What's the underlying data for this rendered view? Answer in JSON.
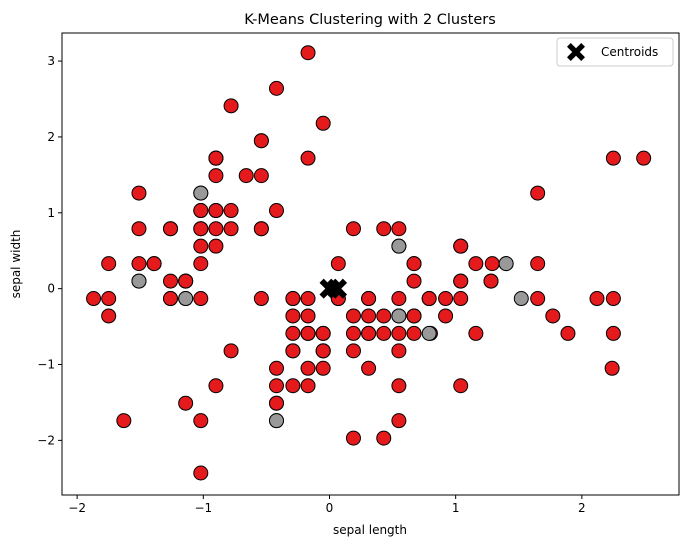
{
  "chart_data": {
    "type": "scatter",
    "title": "K-Means Clustering with 2 Clusters",
    "xlabel": "sepal length",
    "ylabel": "sepal width",
    "xlim": [
      -2.12,
      2.77
    ],
    "ylim": [
      -2.72,
      3.37
    ],
    "xticks": [
      -2,
      -1,
      0,
      1,
      2
    ],
    "yticks": [
      -2,
      -1,
      0,
      1,
      2,
      3
    ],
    "tick_labels_x": [
      "−2",
      "−1",
      "0",
      "1",
      "2"
    ],
    "tick_labels_y": [
      "−2",
      "−1",
      "0",
      "1",
      "2",
      "3"
    ],
    "legend": {
      "entries": [
        "Centroids"
      ],
      "placement": "upper-right"
    },
    "colors": {
      "cluster_red": "#e41a1c",
      "cluster_grey": "#999999",
      "centroid": "#000000",
      "edge": "#000000"
    },
    "series": [
      {
        "cluster": 0,
        "color": "#e41a1c",
        "points": [
          [
            -0.9,
            1.03
          ],
          [
            -1.14,
            -0.13
          ],
          [
            -1.39,
            0.33
          ],
          [
            -1.51,
            0.1
          ],
          [
            -1.02,
            1.26
          ],
          [
            -0.54,
            1.95
          ],
          [
            -1.51,
            0.79
          ],
          [
            -1.02,
            0.79
          ],
          [
            -1.75,
            -0.36
          ],
          [
            -1.14,
            0.1
          ],
          [
            -0.54,
            1.49
          ],
          [
            -1.26,
            0.79
          ],
          [
            -1.26,
            -0.13
          ],
          [
            -1.87,
            -0.13
          ],
          [
            -0.05,
            2.18
          ],
          [
            -0.17,
            3.11
          ],
          [
            -0.54,
            1.95
          ],
          [
            -0.9,
            1.03
          ],
          [
            -0.17,
            1.72
          ],
          [
            -0.9,
            1.72
          ],
          [
            -0.54,
            0.79
          ],
          [
            -0.9,
            1.49
          ],
          [
            -1.51,
            1.26
          ],
          [
            -0.9,
            0.56
          ],
          [
            -1.26,
            0.79
          ],
          [
            -1.02,
            -0.13
          ],
          [
            -1.02,
            0.79
          ],
          [
            -0.78,
            1.03
          ],
          [
            -0.78,
            0.79
          ],
          [
            -1.39,
            0.33
          ],
          [
            -1.26,
            0.1
          ],
          [
            -0.54,
            0.79
          ],
          [
            -0.78,
            2.41
          ],
          [
            -0.42,
            2.64
          ],
          [
            -1.14,
            0.1
          ],
          [
            -1.02,
            0.33
          ],
          [
            -0.42,
            1.03
          ],
          [
            -1.14,
            0.1
          ],
          [
            -1.75,
            -0.13
          ],
          [
            -0.9,
            0.79
          ],
          [
            -1.02,
            1.03
          ],
          [
            -1.63,
            -1.74
          ],
          [
            -1.75,
            0.33
          ],
          [
            -1.02,
            1.03
          ],
          [
            -0.9,
            1.72
          ],
          [
            -1.26,
            -0.13
          ],
          [
            -0.9,
            1.72
          ],
          [
            -1.51,
            0.33
          ],
          [
            -0.66,
            1.49
          ],
          [
            -1.02,
            0.56
          ],
          [
            1.4,
            0.33
          ],
          [
            0.67,
            0.33
          ],
          [
            1.28,
            0.1
          ],
          [
            -0.42,
            -1.74
          ],
          [
            0.8,
            -0.59
          ],
          [
            -0.17,
            -0.59
          ],
          [
            0.55,
            0.56
          ],
          [
            -1.14,
            -1.51
          ],
          [
            0.92,
            -0.36
          ],
          [
            -0.78,
            -0.82
          ],
          [
            -1.02,
            -2.43
          ],
          [
            0.07,
            -0.13
          ],
          [
            0.19,
            -1.97
          ],
          [
            0.31,
            -0.36
          ],
          [
            -0.29,
            -0.36
          ],
          [
            1.04,
            0.1
          ],
          [
            -0.29,
            -0.13
          ],
          [
            -0.05,
            -0.82
          ],
          [
            0.43,
            -1.97
          ],
          [
            -0.29,
            -1.28
          ],
          [
            0.07,
            0.33
          ],
          [
            0.31,
            -0.59
          ],
          [
            0.55,
            -1.28
          ],
          [
            0.31,
            -0.59
          ],
          [
            0.67,
            -0.36
          ],
          [
            0.92,
            -0.13
          ],
          [
            1.16,
            -0.59
          ],
          [
            1.04,
            -0.13
          ],
          [
            0.19,
            -0.36
          ],
          [
            -0.17,
            -1.05
          ],
          [
            -0.42,
            -1.51
          ],
          [
            -0.42,
            -1.51
          ],
          [
            -0.05,
            -0.82
          ],
          [
            0.19,
            -0.82
          ],
          [
            -0.54,
            -0.13
          ],
          [
            0.19,
            0.79
          ],
          [
            1.04,
            0.1
          ],
          [
            0.55,
            -1.74
          ],
          [
            -0.29,
            -0.13
          ],
          [
            -0.42,
            -1.28
          ],
          [
            -0.42,
            -1.05
          ],
          [
            0.31,
            -0.13
          ],
          [
            -0.05,
            -1.05
          ],
          [
            -1.02,
            -1.74
          ],
          [
            -0.29,
            -0.82
          ],
          [
            -0.17,
            -0.13
          ],
          [
            -0.17,
            -0.36
          ],
          [
            0.43,
            -0.36
          ],
          [
            -0.9,
            -1.28
          ],
          [
            -0.17,
            -0.59
          ],
          [
            0.55,
            -0.13
          ],
          [
            1.65,
            0.33
          ],
          [
            2.25,
            -0.13
          ],
          [
            1.04,
            0.56
          ],
          [
            2.49,
            1.72
          ],
          [
            0.67,
            -0.36
          ],
          [
            1.28,
            0.1
          ],
          [
            1.65,
            1.26
          ],
          [
            0.79,
            -0.13
          ],
          [
            2.24,
            -1.05
          ],
          [
            1.89,
            -0.59
          ],
          [
            2.25,
            -0.59
          ],
          [
            -0.05,
            -0.59
          ],
          [
            0.67,
            0.1
          ],
          [
            0.55,
            -0.82
          ],
          [
            1.16,
            0.33
          ],
          [
            1.04,
            -1.28
          ],
          [
            0.55,
            0.79
          ],
          [
            0.43,
            0.79
          ],
          [
            1.29,
            0.33
          ],
          [
            2.25,
            1.72
          ],
          [
            2.12,
            -0.13
          ],
          [
            1.77,
            -0.36
          ],
          [
            1.04,
            0.56
          ],
          [
            0.43,
            -0.59
          ],
          [
            0.31,
            -1.05
          ],
          [
            0.67,
            -0.59
          ],
          [
            0.19,
            -0.59
          ],
          [
            0.55,
            -0.59
          ],
          [
            -0.05,
            -0.59
          ],
          [
            -0.29,
            -0.59
          ],
          [
            0.31,
            -0.13
          ],
          [
            0.55,
            -0.36
          ],
          [
            -0.17,
            -1.28
          ],
          [
            0.67,
            0.33
          ],
          [
            1.65,
            -0.13
          ],
          [
            0.79,
            -0.13
          ],
          [
            -0.29,
            -0.82
          ],
          [
            0.07,
            -0.13
          ],
          [
            -0.05,
            -0.82
          ]
        ]
      },
      {
        "cluster": 1,
        "color": "#999999",
        "points": [
          [
            -1.02,
            1.26
          ],
          [
            -1.51,
            0.1
          ],
          [
            -1.14,
            -0.13
          ],
          [
            0.55,
            0.56
          ],
          [
            0.55,
            -0.36
          ],
          [
            0.79,
            -0.59
          ],
          [
            -0.42,
            -1.74
          ],
          [
            1.4,
            0.33
          ],
          [
            1.52,
            -0.13
          ]
        ]
      },
      {
        "name": "Centroids",
        "color": "#000000",
        "marker": "X",
        "points": [
          [
            0.0,
            0.0
          ],
          [
            0.06,
            0.0
          ]
        ]
      }
    ]
  }
}
